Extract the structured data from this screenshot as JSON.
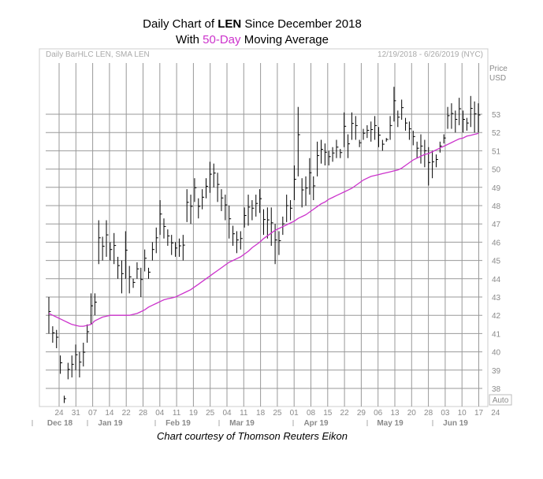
{
  "header": {
    "title_prefix": "Daily Chart of ",
    "title_ticker": "LEN",
    "title_suffix": " Since December 2018",
    "subtitle_prefix": "With ",
    "subtitle_highlight": "50-Day",
    "subtitle_suffix": " Moving Average"
  },
  "chart_box": {
    "left_label": "Daily BarHLC LEN, SMA LEN",
    "right_label": "12/19/2018 - 6/26/2019 (NYC)",
    "price_label": "Price",
    "currency_label": "USD",
    "auto_label": "Auto"
  },
  "credit": "Chart courtesy of Thomson Reuters Eikon",
  "chart_data": {
    "type": "line",
    "title": "Daily Chart of LEN Since December 2018",
    "subtitle": "With 50-Day Moving Average",
    "ylabel": "Price USD",
    "ylim": [
      37,
      54
    ],
    "yticks": [
      38,
      39,
      40,
      41,
      42,
      43,
      44,
      45,
      46,
      47,
      48,
      49,
      50,
      51,
      52,
      53
    ],
    "xticks": [
      "24",
      "31",
      "07",
      "14",
      "22",
      "28",
      "04",
      "11",
      "19",
      "25",
      "04",
      "11",
      "18",
      "25",
      "01",
      "08",
      "15",
      "22",
      "29",
      "06",
      "13",
      "20",
      "28",
      "03",
      "10",
      "17",
      "24"
    ],
    "months": [
      {
        "label": "Dec 18",
        "at": 0
      },
      {
        "label": "Jan 19",
        "at": 7
      },
      {
        "label": "Feb 19",
        "at": 27
      },
      {
        "label": "Mar 19",
        "at": 46
      },
      {
        "label": "Apr 19",
        "at": 66
      },
      {
        "label": "May 19",
        "at": 87
      },
      {
        "label": "Jun 19",
        "at": 109
      }
    ],
    "grid": true,
    "series": [
      {
        "style": "ohlc-bars",
        "color": "#000000",
        "high": [
          43.0,
          41.4,
          41.2,
          39.8,
          37.6,
          39.4,
          39.8,
          40.4,
          40.0,
          40.5,
          41.5,
          43.2,
          43.2,
          47.2,
          46.3,
          47.2,
          46.0,
          46.5,
          45.2,
          45.0,
          46.6,
          44.7,
          44.0,
          44.9,
          44.6,
          45.6,
          44.6,
          46.0,
          46.8,
          48.3,
          47.3,
          46.7,
          46.4,
          46.0,
          46.2,
          46.4,
          48.9,
          48.6,
          49.5,
          48.4,
          48.9,
          49.5,
          50.4,
          50.3,
          49.8,
          48.9,
          48.6,
          48.0,
          46.9,
          46.6,
          46.6,
          47.9,
          48.6,
          48.3,
          48.6,
          48.9,
          47.8,
          47.9,
          47.9,
          47.0,
          46.6,
          47.4,
          48.6,
          48.3,
          50.2,
          53.4,
          49.5,
          49.6,
          50.6,
          49.6,
          51.5,
          51.6,
          51.4,
          51.0,
          51.2,
          51.6,
          51.1,
          53.1,
          51.9,
          53.1,
          52.9,
          51.6,
          52.2,
          52.4,
          52.6,
          52.9,
          52.3,
          51.6,
          51.7,
          52.9,
          54.5,
          53.2,
          53.8,
          52.8,
          52.6,
          52.1,
          51.5,
          51.9,
          51.6,
          51.2,
          51.0,
          50.8,
          51.5,
          51.9,
          53.4,
          53.6,
          53.2,
          53.9,
          53.2,
          52.8,
          54.0,
          53.7,
          53.6
        ],
        "low": [
          41.0,
          40.5,
          40.2,
          38.8,
          37.2,
          38.5,
          38.6,
          39.0,
          38.6,
          39.2,
          40.5,
          41.5,
          42.0,
          44.8,
          45.0,
          45.2,
          45.0,
          44.8,
          44.0,
          43.2,
          44.0,
          43.2,
          43.5,
          44.0,
          43.0,
          44.4,
          44.0,
          45.0,
          45.4,
          46.4,
          46.2,
          45.8,
          45.3,
          45.2,
          45.2,
          45.0,
          47.1,
          47.0,
          48.2,
          47.3,
          47.8,
          48.4,
          48.7,
          49.0,
          48.2,
          47.7,
          47.2,
          46.2,
          45.8,
          45.4,
          45.6,
          46.8,
          46.9,
          47.2,
          47.4,
          47.6,
          46.4,
          46.2,
          45.8,
          44.8,
          45.3,
          46.4,
          47.1,
          47.2,
          48.3,
          49.6,
          47.9,
          48.0,
          48.6,
          48.3,
          49.6,
          50.3,
          50.2,
          50.2,
          50.4,
          50.6,
          50.6,
          51.2,
          50.6,
          51.6,
          51.6,
          51.2,
          51.6,
          51.7,
          51.5,
          51.6,
          51.2,
          51.0,
          51.5,
          51.6,
          52.6,
          52.3,
          52.7,
          52.1,
          51.6,
          51.3,
          50.6,
          50.3,
          50.1,
          49.1,
          49.5,
          50.1,
          50.9,
          51.4,
          52.2,
          52.2,
          52.0,
          52.4,
          52.0,
          52.1,
          52.3,
          52.0,
          52.0
        ]
      },
      {
        "name": "50-Day",
        "style": "line",
        "color": "#cc33cc",
        "values": [
          42.1,
          42.0,
          41.9,
          41.8,
          41.7,
          41.6,
          41.5,
          41.45,
          41.4,
          41.4,
          41.45,
          41.5,
          41.7,
          41.8,
          41.9,
          41.95,
          42.0,
          42.0,
          42.0,
          42.0,
          42.0,
          42.0,
          42.05,
          42.1,
          42.2,
          42.3,
          42.45,
          42.55,
          42.65,
          42.75,
          42.85,
          42.9,
          42.95,
          43.0,
          43.1,
          43.2,
          43.3,
          43.4,
          43.55,
          43.7,
          43.85,
          44.0,
          44.15,
          44.3,
          44.45,
          44.6,
          44.75,
          44.9,
          45.0,
          45.1,
          45.2,
          45.35,
          45.5,
          45.7,
          45.85,
          46.0,
          46.2,
          46.35,
          46.5,
          46.65,
          46.75,
          46.85,
          46.95,
          47.05,
          47.15,
          47.3,
          47.4,
          47.5,
          47.65,
          47.8,
          47.95,
          48.1,
          48.2,
          48.35,
          48.45,
          48.55,
          48.65,
          48.75,
          48.85,
          48.95,
          49.1,
          49.25,
          49.4,
          49.5,
          49.6,
          49.65,
          49.7,
          49.75,
          49.8,
          49.85,
          49.9,
          49.95,
          50.05,
          50.2,
          50.35,
          50.5,
          50.6,
          50.7,
          50.8,
          50.85,
          50.95,
          51.05,
          51.15,
          51.25,
          51.35,
          51.45,
          51.55,
          51.65,
          51.7,
          51.8,
          51.85,
          51.9,
          51.95
        ]
      }
    ]
  }
}
